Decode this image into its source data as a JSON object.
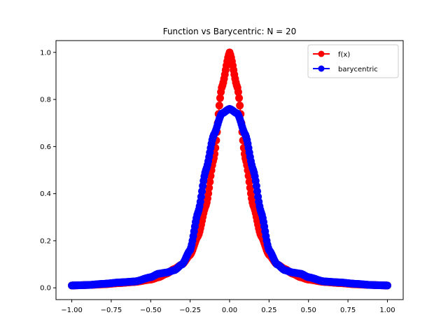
{
  "chart_data": {
    "type": "line",
    "title": "Function vs Barycentric: N = 20",
    "xlabel": "",
    "ylabel": "",
    "xlim": [
      -1.1,
      1.1
    ],
    "ylim": [
      -0.05,
      1.05
    ],
    "x_ticks": [
      -1.0,
      -0.75,
      -0.5,
      -0.25,
      0.0,
      0.25,
      0.5,
      0.75,
      1.0
    ],
    "x_tick_labels": [
      "−1.00",
      "−0.75",
      "−0.50",
      "−0.25",
      "0.00",
      "0.25",
      "0.50",
      "0.75",
      "1.00"
    ],
    "y_ticks": [
      0.0,
      0.2,
      0.4,
      0.6,
      0.8,
      1.0
    ],
    "y_tick_labels": [
      "0.0",
      "0.2",
      "0.4",
      "0.6",
      "0.8",
      "1.0"
    ],
    "grid": false,
    "legend_position": "top-right",
    "x": [
      -1.0,
      -0.9,
      -0.8,
      -0.7,
      -0.6,
      -0.5,
      -0.45,
      -0.4,
      -0.35,
      -0.3,
      -0.25,
      -0.2,
      -0.15,
      -0.1,
      -0.05,
      0.0,
      0.05,
      0.1,
      0.15,
      0.2,
      0.25,
      0.3,
      0.35,
      0.4,
      0.45,
      0.5,
      0.6,
      0.7,
      0.8,
      0.9,
      1.0
    ],
    "series": [
      {
        "name": "f(x)",
        "color": "#ff0000",
        "marker": "circle",
        "values": [
          0.01,
          0.012,
          0.015,
          0.02,
          0.025,
          0.035,
          0.045,
          0.06,
          0.08,
          0.1,
          0.14,
          0.22,
          0.35,
          0.55,
          0.85,
          1.0,
          0.85,
          0.55,
          0.35,
          0.22,
          0.14,
          0.1,
          0.08,
          0.06,
          0.045,
          0.035,
          0.025,
          0.02,
          0.015,
          0.012,
          0.01
        ]
      },
      {
        "name": "barycentric",
        "color": "#0000ff",
        "marker": "circle",
        "values": [
          0.01,
          0.012,
          0.017,
          0.023,
          0.027,
          0.045,
          0.06,
          0.065,
          0.075,
          0.1,
          0.16,
          0.32,
          0.5,
          0.65,
          0.74,
          0.76,
          0.74,
          0.65,
          0.5,
          0.32,
          0.16,
          0.1,
          0.075,
          0.065,
          0.06,
          0.045,
          0.027,
          0.023,
          0.017,
          0.012,
          0.01
        ]
      }
    ]
  }
}
